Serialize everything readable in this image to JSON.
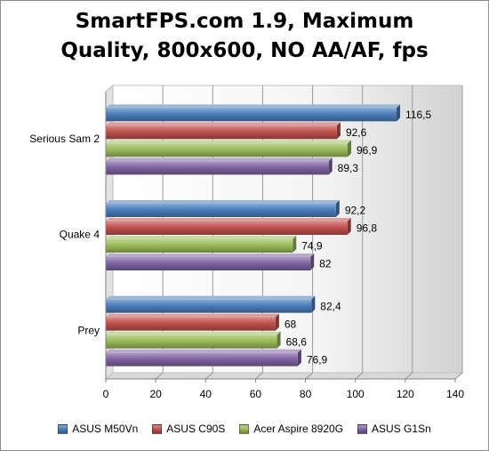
{
  "chart_data": {
    "type": "bar",
    "orientation": "horizontal",
    "title_lines": [
      "SmartFPS.com 1.9, Maximum",
      "Quality, 800x600, NO AA/AF, fps"
    ],
    "categories": [
      "Serious Sam 2",
      "Quake 4",
      "Prey"
    ],
    "series": [
      {
        "name": "ASUS M50Vn",
        "color": "#4a7ebb",
        "values": [
          116.5,
          92.2,
          82.4
        ],
        "labels": [
          "116,5",
          "92,2",
          "82,4"
        ]
      },
      {
        "name": "ASUS C90S",
        "color": "#c0504d",
        "values": [
          92.6,
          96.8,
          68
        ],
        "labels": [
          "92,6",
          "96,8",
          "68"
        ]
      },
      {
        "name": "Acer Aspire 8920G",
        "color": "#9bbb59",
        "values": [
          96.9,
          74.9,
          68.6
        ],
        "labels": [
          "96,9",
          "74,9",
          "68,6"
        ]
      },
      {
        "name": "ASUS G1Sn",
        "color": "#8064a2",
        "values": [
          89.3,
          82,
          76.9
        ],
        "labels": [
          "89,3",
          "82",
          "76,9"
        ]
      }
    ],
    "xlim": [
      0,
      140
    ],
    "xticks": [
      "0",
      "20",
      "40",
      "60",
      "80",
      "100",
      "120",
      "140"
    ],
    "grid": true,
    "legend_position": "bottom"
  }
}
